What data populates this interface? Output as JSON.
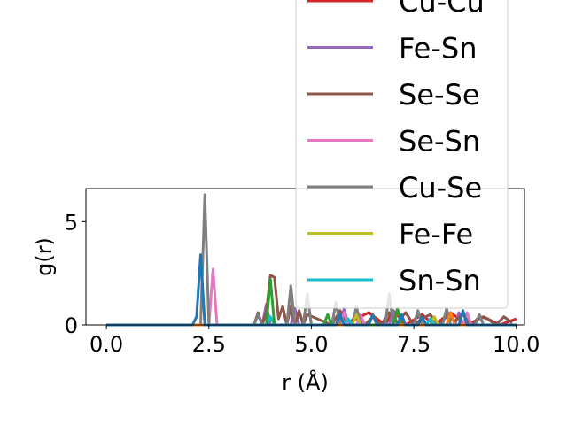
{
  "chart_data": {
    "type": "line",
    "xlabel": "r (Å)",
    "ylabel": "g(r)",
    "xlim": [
      -0.5,
      10.2
    ],
    "ylim": [
      0,
      6.6
    ],
    "xticks": [
      0.0,
      2.5,
      5.0,
      7.5,
      10.0
    ],
    "xtick_labels": [
      "0.0",
      "2.5",
      "5.0",
      "7.5",
      "10.0"
    ],
    "yticks": [
      0,
      5
    ],
    "ytick_labels": [
      "0",
      "5"
    ],
    "grid": false,
    "legend_position": "upper-right",
    "series": [
      {
        "name": "Cu-Cu",
        "color": "#d62728",
        "x": [
          0,
          3.8,
          5.6,
          5.7,
          5.8,
          6.4,
          6.8,
          7.0,
          7.3,
          7.7,
          8.0,
          8.4,
          8.8,
          9.2,
          9.6,
          10.0
        ],
        "y": [
          0,
          0,
          0,
          0.5,
          0,
          0.6,
          0,
          0.7,
          0,
          0.5,
          0,
          0.6,
          0,
          0.4,
          0,
          0.3
        ]
      },
      {
        "name": "Fe-Sn",
        "color": "#9467bd",
        "x": [
          0,
          3.8,
          3.9,
          4.0,
          4.1,
          4.5,
          4.6,
          4.7,
          5.7,
          5.8,
          5.9,
          6.9,
          7.0,
          7.1,
          8.5,
          8.6,
          8.7,
          10.0
        ],
        "y": [
          0,
          0,
          1.0,
          0,
          0,
          0,
          0.8,
          0,
          0,
          0.8,
          0,
          0,
          0.7,
          0,
          0,
          0.6,
          0,
          0
        ]
      },
      {
        "name": "Se-Se",
        "color": "#8c564b",
        "x": [
          0,
          3.6,
          3.7,
          3.8,
          3.9,
          4.0,
          4.1,
          4.2,
          4.3,
          4.4,
          4.5,
          4.6,
          4.7,
          4.8,
          4.9,
          5.5,
          5.7,
          5.9,
          6.1,
          6.3,
          6.5,
          6.7,
          6.9,
          7.1,
          7.3,
          7.5,
          7.7,
          7.9,
          8.1,
          8.3,
          8.5,
          8.7,
          8.9,
          9.1,
          9.3,
          9.5,
          9.7,
          9.9
        ],
        "y": [
          0,
          0,
          0.6,
          0,
          0.6,
          2.4,
          2.3,
          0.3,
          0.9,
          0,
          0.9,
          0,
          0.7,
          0,
          0.5,
          0,
          0.7,
          0,
          0.5,
          0,
          0.4,
          0,
          0.6,
          0.1,
          0.6,
          0,
          0.3,
          0.5,
          0,
          0.4,
          0.2,
          0.5,
          0,
          0.4,
          0.3,
          0,
          0.4,
          0.1
        ]
      },
      {
        "name": "Se-Sn",
        "color": "#e377c2",
        "x": [
          0,
          2.5,
          2.6,
          2.7,
          2.8,
          5.7,
          5.8,
          5.9,
          6.1,
          6.2,
          6.3,
          8.7,
          8.8,
          8.9,
          10.0
        ],
        "y": [
          0,
          0,
          2.7,
          0,
          0,
          0,
          0.6,
          0,
          0,
          0.5,
          0,
          0,
          0.6,
          0,
          0
        ]
      },
      {
        "name": "Cu-Se",
        "color": "#7f7f7f",
        "x": [
          0,
          2.3,
          2.4,
          2.5,
          3.6,
          3.7,
          3.8,
          4.4,
          4.5,
          4.6,
          4.8,
          4.9,
          5.0,
          5.5,
          5.6,
          5.7,
          6.0,
          6.1,
          6.2,
          6.8,
          6.9,
          7.0,
          7.5,
          7.6,
          7.7,
          8.2,
          8.3,
          8.4,
          9.0,
          9.1,
          9.2,
          10.0
        ],
        "y": [
          0,
          0,
          6.3,
          0,
          0,
          0.5,
          0,
          0,
          1.9,
          0,
          0,
          1.5,
          0,
          0,
          1.1,
          0,
          0,
          0.9,
          0,
          0,
          1.5,
          0,
          0,
          0.7,
          0,
          0,
          0.8,
          0,
          0,
          0.5,
          0,
          0
        ]
      },
      {
        "name": "Fe-Fe",
        "color": "#bcbd22",
        "x": [
          0,
          6.0,
          6.1,
          6.2,
          7.9,
          8.0,
          8.1,
          10.0
        ],
        "y": [
          0,
          0,
          0.5,
          0,
          0,
          0.4,
          0,
          0
        ]
      },
      {
        "name": "Sn-Sn",
        "color": "#17becf",
        "x": [
          0,
          3.9,
          4.0,
          4.1,
          5.8,
          5.9,
          6.0,
          7.8,
          7.9,
          8.0,
          10.0
        ],
        "y": [
          0,
          0,
          0.4,
          0,
          0,
          0.3,
          0,
          0,
          0.3,
          0,
          0
        ]
      },
      {
        "name": "",
        "color": "#2ca02c",
        "x": [
          0,
          3.9,
          4.0,
          4.1,
          5.3,
          5.4,
          5.5,
          7.0,
          7.1,
          7.2,
          10.0
        ],
        "y": [
          0,
          0,
          2.2,
          0,
          0,
          0.5,
          0,
          0,
          0.8,
          0,
          0
        ]
      },
      {
        "name": "",
        "color": "#ff7f0e",
        "x": [
          0,
          6.4,
          6.5,
          6.6,
          8.3,
          8.4,
          8.5,
          10.0
        ],
        "y": [
          0,
          0,
          0.5,
          0,
          0,
          0.6,
          0,
          0
        ]
      },
      {
        "name": "",
        "color": "#1f77b4",
        "x": [
          0,
          2.1,
          2.2,
          2.3,
          2.4,
          5.6,
          5.7,
          5.8,
          6.4,
          6.5,
          6.6,
          7.1,
          7.2,
          7.3,
          7.6,
          7.7,
          7.8,
          8.6,
          8.7,
          8.8,
          10.0
        ],
        "y": [
          0,
          0,
          0.4,
          3.4,
          0,
          0,
          0.5,
          0,
          0,
          0.5,
          0,
          0,
          0.5,
          0,
          0,
          0.4,
          0,
          0,
          0.7,
          0,
          0
        ]
      }
    ],
    "legend_entries": [
      {
        "label": "Cu-Cu",
        "color": "#d62728"
      },
      {
        "label": "Fe-Sn",
        "color": "#9467bd"
      },
      {
        "label": "Se-Se",
        "color": "#8c564b"
      },
      {
        "label": "Se-Sn",
        "color": "#e377c2"
      },
      {
        "label": "Cu-Se",
        "color": "#7f7f7f"
      },
      {
        "label": "Fe-Fe",
        "color": "#bcbd22"
      },
      {
        "label": "Sn-Sn",
        "color": "#17becf"
      }
    ]
  }
}
